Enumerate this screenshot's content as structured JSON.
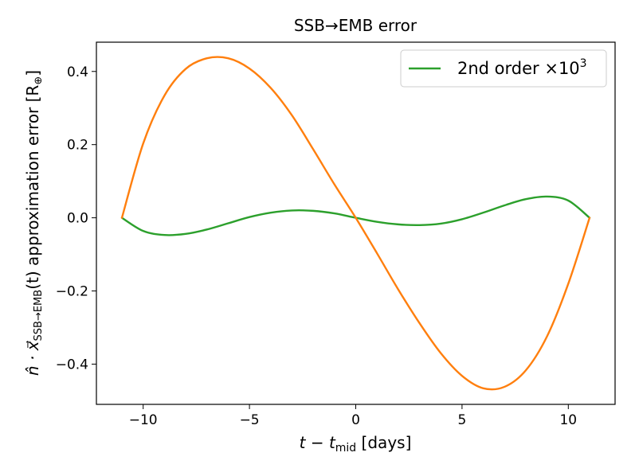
{
  "chart_data": {
    "type": "line",
    "title": "SSB→EMB error",
    "xlabel": {
      "base": "t − t",
      "sub": "mid",
      "rest": " [days]"
    },
    "ylabel": {
      "base": "n̂ · x⃗",
      "sub": "SSB→EMB",
      "rest": "(t) approximation error [R",
      "sub2": "⊕",
      "end": "]"
    },
    "xlim": [
      -12.2,
      12.2
    ],
    "ylim": [
      -0.51,
      0.48
    ],
    "xticks": [
      -10,
      -5,
      0,
      5,
      10
    ],
    "xtick_labels": [
      "−10",
      "−5",
      "0",
      "5",
      "10"
    ],
    "yticks": [
      -0.4,
      -0.2,
      0.0,
      0.2,
      0.4
    ],
    "ytick_labels": [
      "−0.4",
      "−0.2",
      "0.0",
      "0.2",
      "0.4"
    ],
    "grid": false,
    "legend_position": "top-right",
    "legend": {
      "label_base": "2nd order ×10",
      "label_sup": "3"
    },
    "series": [
      {
        "name": "2nd order ×10³",
        "color": "#2ca02c",
        "x": [
          -11,
          -10,
          -9,
          -8,
          -7,
          -6,
          -5,
          -4,
          -3,
          -2,
          -1,
          0,
          1,
          2,
          3,
          4,
          5,
          6,
          7,
          8,
          9,
          10,
          11
        ],
        "y": [
          0.0,
          -0.036,
          -0.047,
          -0.044,
          -0.032,
          -0.015,
          0.002,
          0.014,
          0.02,
          0.019,
          0.012,
          0.0,
          -0.011,
          -0.018,
          -0.02,
          -0.016,
          -0.004,
          0.014,
          0.034,
          0.051,
          0.058,
          0.047,
          0.0
        ]
      },
      {
        "color": "#ff7f0e",
        "x": [
          -11,
          -10,
          -9,
          -8,
          -7,
          -6,
          -5,
          -4,
          -3,
          -2,
          -1,
          0,
          1,
          2,
          3,
          4,
          5,
          6,
          7,
          8,
          9,
          10,
          11
        ],
        "y": [
          0.0,
          0.203,
          0.334,
          0.407,
          0.436,
          0.436,
          0.408,
          0.355,
          0.28,
          0.187,
          0.091,
          0.0,
          -0.097,
          -0.196,
          -0.288,
          -0.37,
          -0.432,
          -0.466,
          -0.462,
          -0.417,
          -0.324,
          -0.18,
          0.0
        ]
      }
    ]
  }
}
